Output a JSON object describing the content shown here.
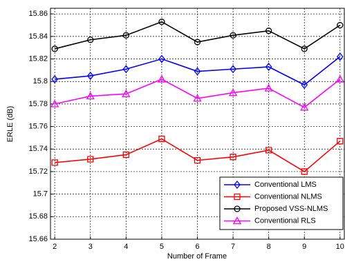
{
  "chart_data": {
    "type": "line",
    "xlabel": "Number of Frame",
    "ylabel": "ERLE (dB)",
    "x": [
      2,
      3,
      4,
      5,
      6,
      7,
      8,
      9,
      10
    ],
    "series": [
      {
        "name": "Conventional LMS",
        "color": "#0000ff",
        "marker": "diamond",
        "values": [
          15.802,
          15.805,
          15.811,
          15.82,
          15.809,
          15.811,
          15.813,
          15.797,
          15.822
        ]
      },
      {
        "name": "Conventional NLMS",
        "color": "#ff0000",
        "marker": "square",
        "values": [
          15.728,
          15.731,
          15.735,
          15.749,
          15.73,
          15.733,
          15.739,
          15.72,
          15.747
        ]
      },
      {
        "name": "Proposed VSS-NLMS",
        "color": "#000000",
        "marker": "circle",
        "values": [
          15.829,
          15.837,
          15.841,
          15.853,
          15.835,
          15.841,
          15.845,
          15.829,
          15.85
        ]
      },
      {
        "name": "Conventional RLS",
        "color": "#ff00ff",
        "marker": "triangle",
        "values": [
          15.78,
          15.787,
          15.789,
          15.802,
          15.785,
          15.79,
          15.794,
          15.777,
          15.802
        ]
      }
    ],
    "xlim": [
      1.88,
      10.12
    ],
    "xticks": [
      2,
      3,
      4,
      5,
      6,
      7,
      8,
      9,
      10
    ],
    "ylim": [
      15.66,
      15.865
    ],
    "yticks": [
      15.66,
      15.68,
      15.7,
      15.72,
      15.74,
      15.76,
      15.78,
      15.8,
      15.82,
      15.84,
      15.86
    ],
    "grid": true,
    "legend": "lower-right"
  }
}
